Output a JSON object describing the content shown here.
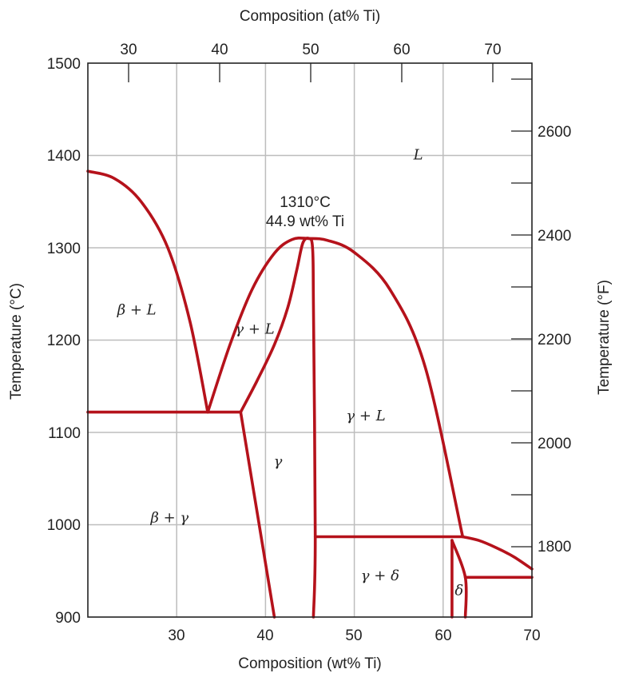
{
  "chart_data": {
    "type": "line",
    "title": "",
    "colors": {
      "boundary": "#b5121b",
      "grid": "#bdbdbd",
      "frame": "#222222"
    },
    "axes": {
      "x_bottom": {
        "label": "Composition (wt% Ti)",
        "range": [
          20,
          70
        ],
        "ticks": [
          "30",
          "40",
          "50",
          "60",
          "70"
        ]
      },
      "x_top": {
        "label": "Composition (at% Ti)",
        "ticks": [
          "30",
          "40",
          "50",
          "60",
          "70"
        ]
      },
      "y_left": {
        "label": "Temperature (°C)",
        "range": [
          900,
          1500
        ],
        "ticks": [
          "900",
          "1000",
          "1100",
          "1200",
          "1300",
          "1400",
          "1500"
        ]
      },
      "y_right": {
        "label": "Temperature (°F)",
        "ticks": [
          "1800",
          "2000",
          "2200",
          "2400",
          "2600"
        ]
      }
    },
    "grid": true,
    "annotation": {
      "line1": "1310°C",
      "line2": "44.9 wt% Ti"
    },
    "phase_labels": [
      {
        "text": "L",
        "x": 57.2,
        "y": 1401
      },
      {
        "text": "β + L",
        "x": 25.5,
        "y": 1233
      },
      {
        "text": "γ + L",
        "x": 38.8,
        "y": 1212
      },
      {
        "text": "γ + L",
        "x": 51.3,
        "y": 1118
      },
      {
        "text": "γ",
        "x": 41.4,
        "y": 1069
      },
      {
        "text": "β + γ",
        "x": 29.2,
        "y": 1008
      },
      {
        "text": "γ + δ",
        "x": 52.9,
        "y": 945
      },
      {
        "text": "δ",
        "x": 61.8,
        "y": 929
      }
    ],
    "series": [
      {
        "points": [
          [
            20,
            1383
          ],
          [
            23,
            1375
          ],
          [
            26,
            1350
          ],
          [
            29,
            1300
          ],
          [
            31.5,
            1220
          ],
          [
            33.5,
            1122
          ]
        ]
      },
      {
        "points": [
          [
            33.5,
            1122
          ],
          [
            36,
            1195
          ],
          [
            38.5,
            1255
          ],
          [
            41,
            1294
          ],
          [
            43,
            1309
          ],
          [
            44.9,
            1310
          ],
          [
            47,
            1308
          ],
          [
            50,
            1295
          ],
          [
            54,
            1255
          ],
          [
            58,
            1170
          ],
          [
            62.2,
            987
          ]
        ]
      },
      {
        "points": [
          [
            37.2,
            1122
          ],
          [
            39,
            1155
          ],
          [
            41,
            1195
          ],
          [
            42.5,
            1235
          ],
          [
            43.5,
            1275
          ],
          [
            44.2,
            1305
          ],
          [
            44.9,
            1310
          ],
          [
            45.3,
            1300
          ],
          [
            45.4,
            1240
          ],
          [
            45.6,
            987
          ],
          [
            45.4,
            900
          ]
        ]
      },
      {
        "points": [
          [
            20,
            1122
          ],
          [
            37.2,
            1122
          ]
        ]
      },
      {
        "points": [
          [
            37.2,
            1122
          ],
          [
            41,
            900
          ]
        ]
      },
      {
        "points": [
          [
            45.6,
            987
          ],
          [
            62.2,
            987
          ]
        ]
      },
      {
        "points": [
          [
            62.2,
            987
          ],
          [
            64,
            983
          ],
          [
            66,
            975
          ],
          [
            68,
            965
          ],
          [
            70,
            952
          ]
        ]
      },
      {
        "points": [
          [
            61,
            983
          ],
          [
            61,
            900
          ]
        ]
      },
      {
        "points": [
          [
            61,
            983
          ],
          [
            62.5,
            943
          ],
          [
            62.5,
            900
          ]
        ]
      },
      {
        "points": [
          [
            62.5,
            943
          ],
          [
            70,
            943
          ]
        ]
      }
    ]
  }
}
